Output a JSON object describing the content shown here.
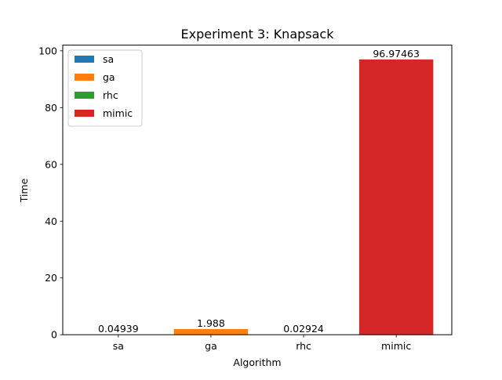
{
  "chart_data": {
    "type": "bar",
    "title": "Experiment 3: Knapsack",
    "xlabel": "Algorithm",
    "ylabel": "Time",
    "categories": [
      "sa",
      "ga",
      "rhc",
      "mimic"
    ],
    "values": [
      0.04939,
      1.988,
      0.02924,
      96.97463
    ],
    "data_labels": [
      "0.04939",
      "1.988",
      "0.02924",
      "96.97463"
    ],
    "colors": [
      "#1f77b4",
      "#ff7f0e",
      "#2ca02c",
      "#d62728"
    ],
    "ylim": [
      0,
      102
    ],
    "yticks": [
      0,
      20,
      40,
      60,
      80,
      100
    ],
    "grid": false,
    "legend": {
      "position": "top-left",
      "entries": [
        "sa",
        "ga",
        "rhc",
        "mimic"
      ]
    }
  }
}
